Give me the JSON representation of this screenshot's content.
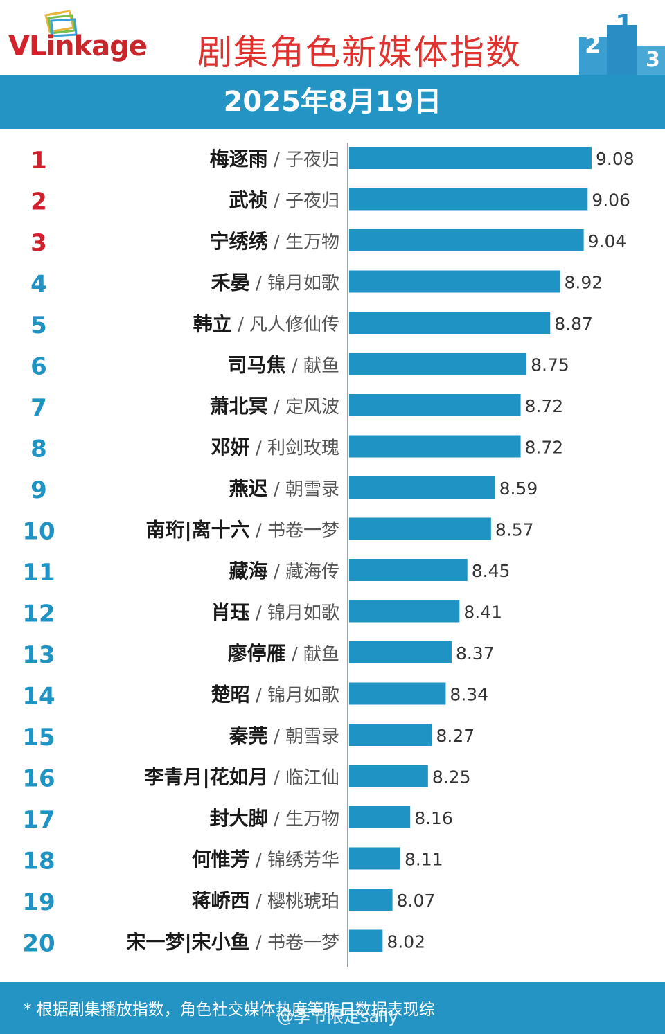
{
  "header": {
    "logo_text_prefix": "VL",
    "logo_text_suffix": "inkage",
    "title": "剧集角色新媒体指数",
    "podium_icon": "podium-icon"
  },
  "date": "2025年8月19日",
  "colors": {
    "bar": "#1f93c4",
    "rank_top3": "#d0202c",
    "rank_other": "#1f93c4",
    "band": "#2394c3",
    "title": "#e0332f"
  },
  "chart_data": {
    "type": "bar",
    "orientation": "horizontal",
    "title": "剧集角色新媒体指数",
    "subtitle": "2025年8月19日",
    "xlim": [
      7.85,
      9.2
    ],
    "grid": false,
    "legend": "none",
    "ranks": [
      "1",
      "2",
      "3",
      "4",
      "5",
      "6",
      "7",
      "8",
      "9",
      "10",
      "11",
      "12",
      "13",
      "14",
      "15",
      "16",
      "17",
      "18",
      "19",
      "20"
    ],
    "characters": [
      "梅逐雨",
      "武祯",
      "宁绣绣",
      "禾晏",
      "韩立",
      "司马焦",
      "萧北冥",
      "邓妍",
      "燕迟",
      "南珩|离十六",
      "藏海",
      "肖珏",
      "廖停雁",
      "楚昭",
      "秦莞",
      "李青月|花如月",
      "封大脚",
      "何惟芳",
      "蒋峤西",
      "宋一梦|宋小鱼"
    ],
    "dramas": [
      "子夜归",
      "子夜归",
      "生万物",
      "锦月如歌",
      "凡人修仙传",
      "献鱼",
      "定风波",
      "利剑玫瑰",
      "朝雪录",
      "书卷一梦",
      "藏海传",
      "锦月如歌",
      "献鱼",
      "锦月如歌",
      "朝雪录",
      "临江仙",
      "生万物",
      "锦绣芳华",
      "樱桃琥珀",
      "书卷一梦"
    ],
    "values": [
      9.08,
      9.06,
      9.04,
      8.92,
      8.87,
      8.75,
      8.72,
      8.72,
      8.59,
      8.57,
      8.45,
      8.41,
      8.37,
      8.34,
      8.27,
      8.25,
      8.16,
      8.11,
      8.07,
      8.02
    ],
    "value_labels": [
      "9.08",
      "9.06",
      "9.04",
      "8.92",
      "8.87",
      "8.75",
      "8.72",
      "8.72",
      "8.59",
      "8.57",
      "8.45",
      "8.41",
      "8.37",
      "8.34",
      "8.27",
      "8.25",
      "8.16",
      "8.11",
      "8.07",
      "8.02"
    ]
  },
  "footer": {
    "footnote": "* 根据剧集播放指数，角色社交媒体热度等昨日数据表现综",
    "watermark": "@季节限定sally"
  }
}
